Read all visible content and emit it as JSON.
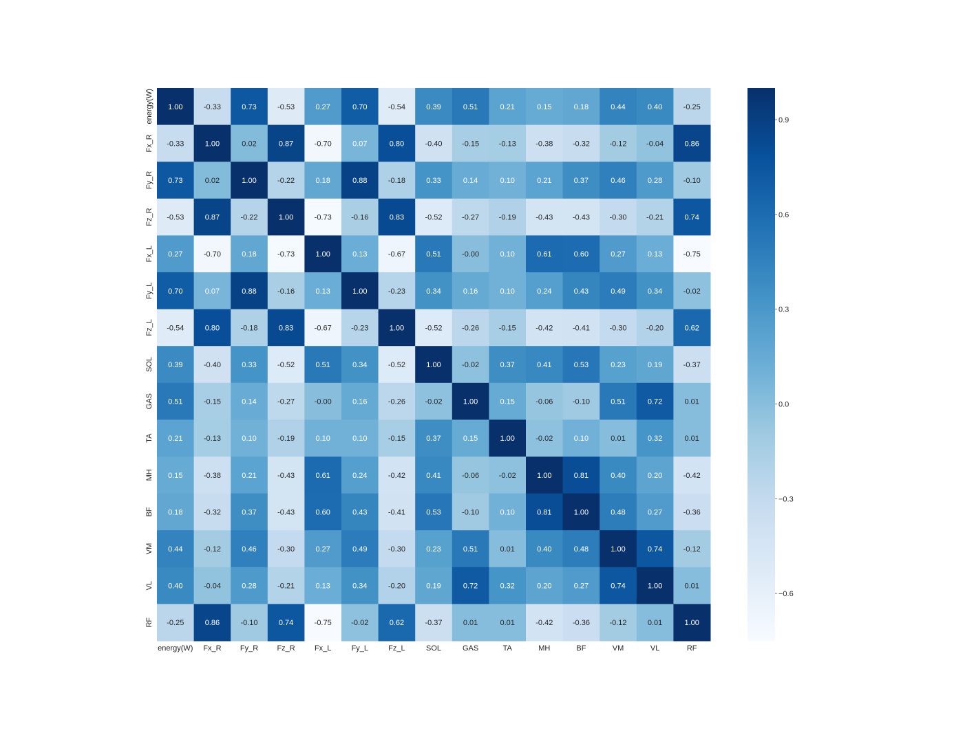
{
  "chart_data": {
    "type": "heatmap",
    "title": "",
    "xlabel": "",
    "ylabel": "",
    "colormap": "Blues",
    "colormap_stops": [
      "#f7fbff",
      "#deebf7",
      "#c6dbef",
      "#9ecae1",
      "#6baed6",
      "#4292c6",
      "#2171b5",
      "#08519c",
      "#08306b"
    ],
    "vmin": -0.75,
    "vmax": 1.0,
    "colorbar_ticks": [
      0.9,
      0.6,
      0.3,
      0.0,
      -0.3,
      -0.6
    ],
    "colorbar_tick_labels": [
      "0.9",
      "0.6",
      "0.3",
      "0.0",
      "−0.3",
      "−0.6"
    ],
    "x_labels": [
      "energy(W)",
      "Fx_R",
      "Fy_R",
      "Fz_R",
      "Fx_L",
      "Fy_L",
      "Fz_L",
      "SOL",
      "GAS",
      "TA",
      "MH",
      "BF",
      "VM",
      "VL",
      "RF"
    ],
    "y_labels": [
      "energy(W)",
      "Fx_R",
      "Fy_R",
      "Fz_R",
      "Fx_L",
      "Fy_L",
      "Fz_L",
      "SOL",
      "GAS",
      "TA",
      "MH",
      "BF",
      "VM",
      "VL",
      "RF"
    ],
    "values": [
      [
        "1.00",
        "-0.33",
        "0.73",
        "-0.53",
        "0.27",
        "0.70",
        "-0.54",
        "0.39",
        "0.51",
        "0.21",
        "0.15",
        "0.18",
        "0.44",
        "0.40",
        "-0.25"
      ],
      [
        "-0.33",
        "1.00",
        "0.02",
        "0.87",
        "-0.70",
        "0.07",
        "0.80",
        "-0.40",
        "-0.15",
        "-0.13",
        "-0.38",
        "-0.32",
        "-0.12",
        "-0.04",
        "0.86"
      ],
      [
        "0.73",
        "0.02",
        "1.00",
        "-0.22",
        "0.18",
        "0.88",
        "-0.18",
        "0.33",
        "0.14",
        "0.10",
        "0.21",
        "0.37",
        "0.46",
        "0.28",
        "-0.10"
      ],
      [
        "-0.53",
        "0.87",
        "-0.22",
        "1.00",
        "-0.73",
        "-0.16",
        "0.83",
        "-0.52",
        "-0.27",
        "-0.19",
        "-0.43",
        "-0.43",
        "-0.30",
        "-0.21",
        "0.74"
      ],
      [
        "0.27",
        "-0.70",
        "0.18",
        "-0.73",
        "1.00",
        "0.13",
        "-0.67",
        "0.51",
        "-0.00",
        "0.10",
        "0.61",
        "0.60",
        "0.27",
        "0.13",
        "-0.75"
      ],
      [
        "0.70",
        "0.07",
        "0.88",
        "-0.16",
        "0.13",
        "1.00",
        "-0.23",
        "0.34",
        "0.16",
        "0.10",
        "0.24",
        "0.43",
        "0.49",
        "0.34",
        "-0.02"
      ],
      [
        "-0.54",
        "0.80",
        "-0.18",
        "0.83",
        "-0.67",
        "-0.23",
        "1.00",
        "-0.52",
        "-0.26",
        "-0.15",
        "-0.42",
        "-0.41",
        "-0.30",
        "-0.20",
        "0.62"
      ],
      [
        "0.39",
        "-0.40",
        "0.33",
        "-0.52",
        "0.51",
        "0.34",
        "-0.52",
        "1.00",
        "-0.02",
        "0.37",
        "0.41",
        "0.53",
        "0.23",
        "0.19",
        "-0.37"
      ],
      [
        "0.51",
        "-0.15",
        "0.14",
        "-0.27",
        "-0.00",
        "0.16",
        "-0.26",
        "-0.02",
        "1.00",
        "0.15",
        "-0.06",
        "-0.10",
        "0.51",
        "0.72",
        "0.01"
      ],
      [
        "0.21",
        "-0.13",
        "0.10",
        "-0.19",
        "0.10",
        "0.10",
        "-0.15",
        "0.37",
        "0.15",
        "1.00",
        "-0.02",
        "0.10",
        "0.01",
        "0.32",
        "0.01"
      ],
      [
        "0.15",
        "-0.38",
        "0.21",
        "-0.43",
        "0.61",
        "0.24",
        "-0.42",
        "0.41",
        "-0.06",
        "-0.02",
        "1.00",
        "0.81",
        "0.40",
        "0.20",
        "-0.42"
      ],
      [
        "0.18",
        "-0.32",
        "0.37",
        "-0.43",
        "0.60",
        "0.43",
        "-0.41",
        "0.53",
        "-0.10",
        "0.10",
        "0.81",
        "1.00",
        "0.48",
        "0.27",
        "-0.36"
      ],
      [
        "0.44",
        "-0.12",
        "0.46",
        "-0.30",
        "0.27",
        "0.49",
        "-0.30",
        "0.23",
        "0.51",
        "0.01",
        "0.40",
        "0.48",
        "1.00",
        "0.74",
        "-0.12"
      ],
      [
        "0.40",
        "-0.04",
        "0.28",
        "-0.21",
        "0.13",
        "0.34",
        "-0.20",
        "0.19",
        "0.72",
        "0.32",
        "0.20",
        "0.27",
        "0.74",
        "1.00",
        "0.01"
      ],
      [
        "-0.25",
        "0.86",
        "-0.10",
        "0.74",
        "-0.75",
        "-0.02",
        "0.62",
        "-0.37",
        "0.01",
        "0.01",
        "-0.42",
        "-0.36",
        "-0.12",
        "0.01",
        "1.00"
      ]
    ]
  }
}
